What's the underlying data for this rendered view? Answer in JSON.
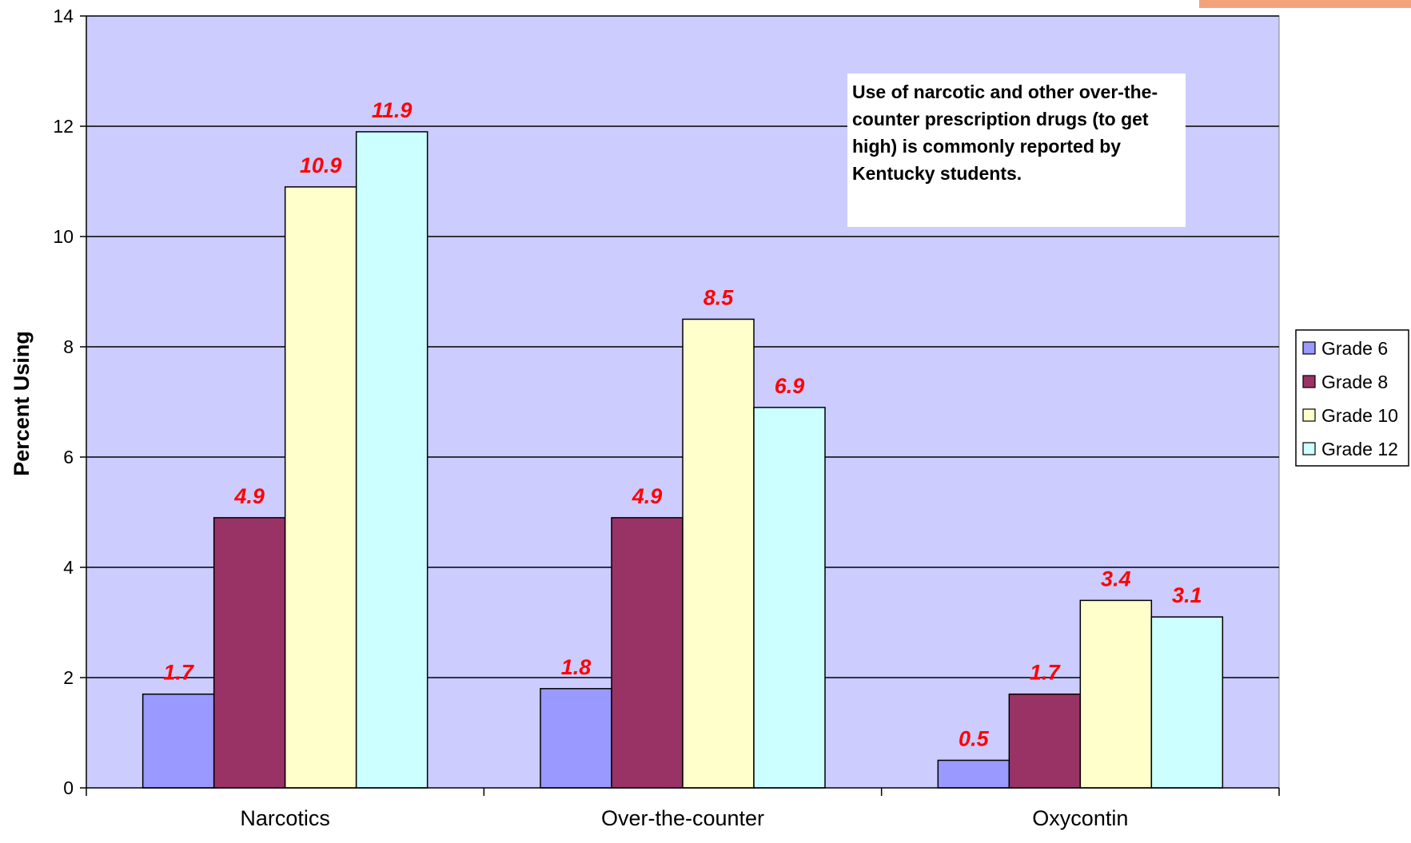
{
  "chart_data": {
    "type": "bar",
    "title": "",
    "xlabel": "",
    "ylabel": "Percent Using",
    "ylim": [
      0,
      14
    ],
    "yticks": [
      0,
      2,
      4,
      6,
      8,
      10,
      12,
      14
    ],
    "grid": true,
    "legend_position": "right",
    "categories": [
      "Narcotics",
      "Over-the-counter",
      "Oxycontin"
    ],
    "series": [
      {
        "name": "Grade 6",
        "color": "#9999ff",
        "values": [
          1.7,
          1.8,
          0.5
        ]
      },
      {
        "name": "Grade 8",
        "color": "#993366",
        "values": [
          4.9,
          4.9,
          1.7
        ]
      },
      {
        "name": "Grade 10",
        "color": "#ffffcc",
        "values": [
          10.9,
          8.5,
          3.4
        ]
      },
      {
        "name": "Grade 12",
        "color": "#ccffff",
        "values": [
          11.9,
          6.9,
          3.1
        ]
      }
    ],
    "annotation": "Use of narcotic and other over-the-counter prescription drugs (to get high) is commonly reported by Kentucky students.",
    "plot_background": "#ccccff",
    "data_label_color": "#ff0000"
  }
}
